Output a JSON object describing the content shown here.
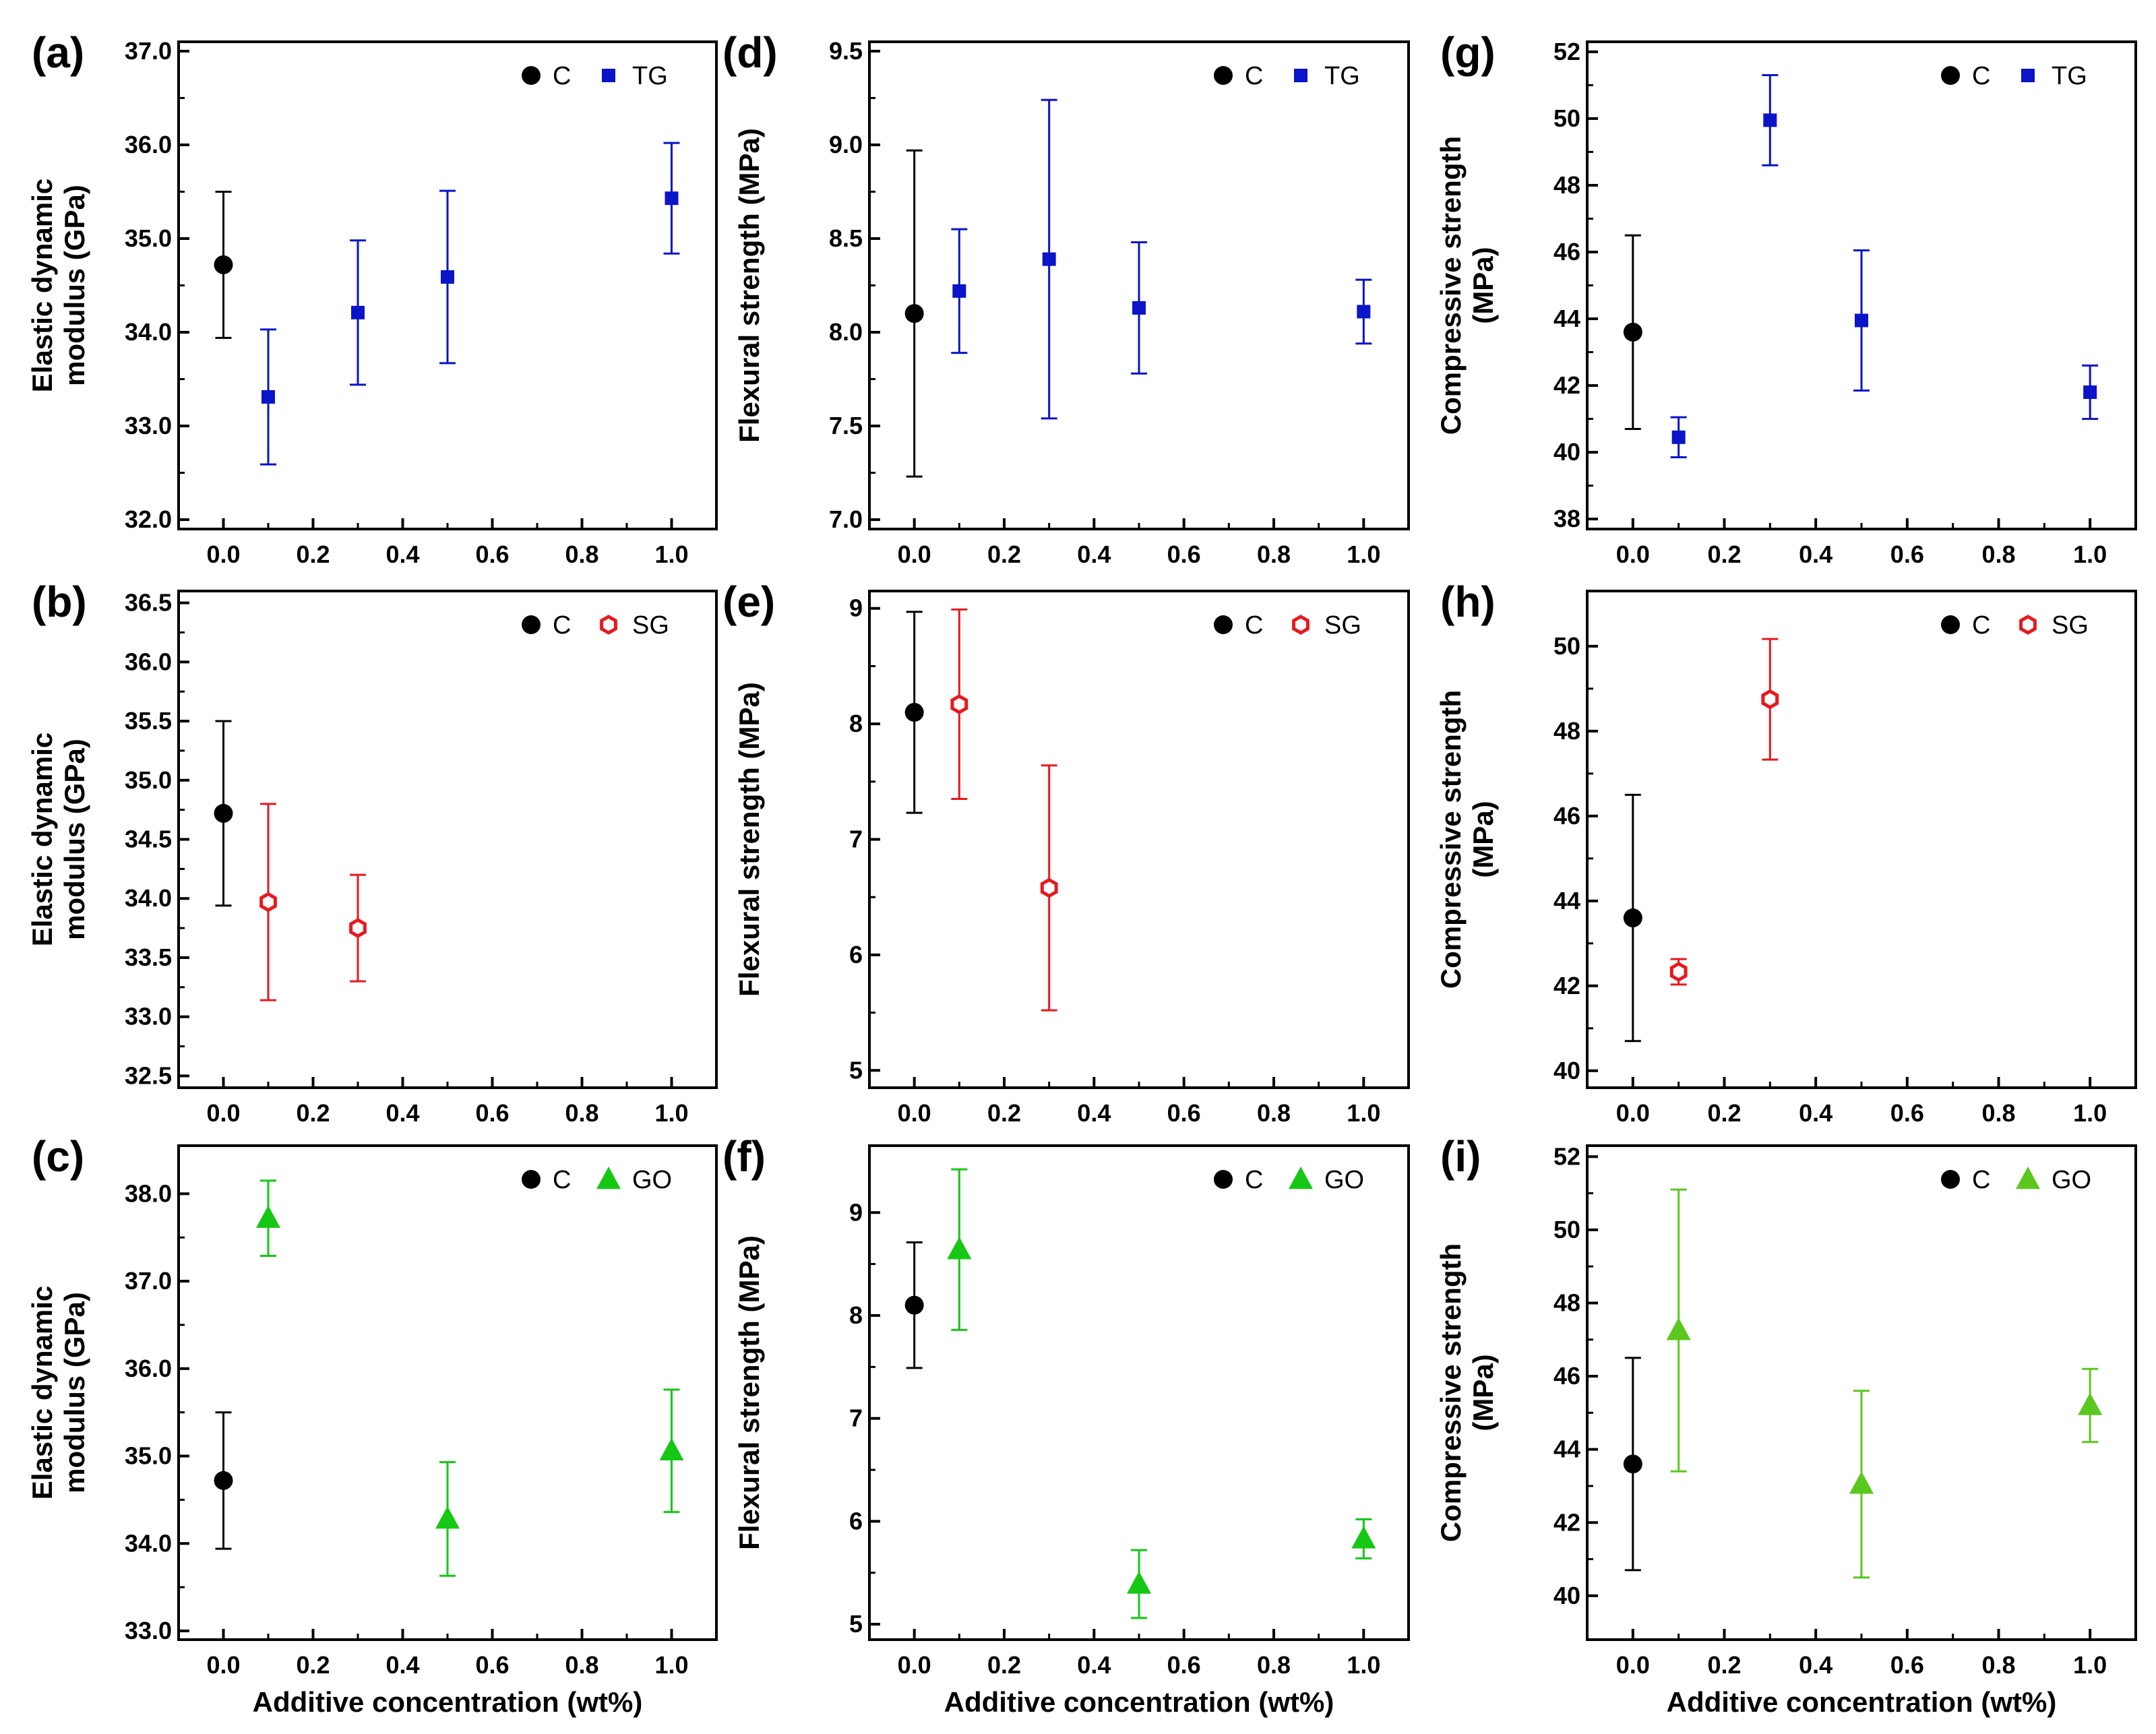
{
  "colors": {
    "C": "#000000",
    "TG": "#0a14c8",
    "SG": "#e8191e",
    "GO_bright": "#14c814",
    "GO_lime": "#5ac81e"
  },
  "chart_data": [
    {
      "panel": "(a)",
      "type": "scatter",
      "xlabel": "",
      "ylabel": [
        "Elastic dynamic",
        "modulus (GPa)"
      ],
      "xlim": [
        -0.1,
        1.1
      ],
      "ylim": [
        31.9,
        37.1
      ],
      "xticks": [
        "0.0",
        "0.2",
        "0.4",
        "0.6",
        "0.8",
        "1.0"
      ],
      "yticks": [
        "32.0",
        "33.0",
        "34.0",
        "35.0",
        "36.0",
        "37.0"
      ],
      "legend": [
        "C",
        "TG"
      ],
      "legend_position": "top-right",
      "marker": "square",
      "color_key": "TG",
      "series": [
        {
          "name": "C",
          "x": [
            0.0
          ],
          "y": [
            34.72
          ],
          "err": [
            0.78
          ]
        },
        {
          "name": "TG",
          "x": [
            0.1,
            0.3,
            0.5,
            1.0
          ],
          "y": [
            33.31,
            34.21,
            34.59,
            35.43
          ],
          "err": [
            0.72,
            0.77,
            0.92,
            0.59
          ]
        }
      ]
    },
    {
      "panel": "(b)",
      "type": "scatter",
      "xlabel": "",
      "ylabel": [
        "Elastic dynamic",
        "modulus (GPa)"
      ],
      "xlim": [
        -0.1,
        1.1
      ],
      "ylim": [
        32.4,
        36.6
      ],
      "xticks": [
        "0.0",
        "0.2",
        "0.4",
        "0.6",
        "0.8",
        "1.0"
      ],
      "yticks": [
        "32.5",
        "33.0",
        "33.5",
        "34.0",
        "34.5",
        "35.0",
        "35.5",
        "36.0",
        "36.5"
      ],
      "legend": [
        "C",
        "SG"
      ],
      "legend_position": "top-right",
      "marker": "hexagon-open",
      "color_key": "SG",
      "series": [
        {
          "name": "C",
          "x": [
            0.0
          ],
          "y": [
            34.72
          ],
          "err": [
            0.78
          ]
        },
        {
          "name": "SG",
          "x": [
            0.1,
            0.3
          ],
          "y": [
            33.97,
            33.75
          ],
          "err": [
            0.83,
            0.45
          ]
        }
      ]
    },
    {
      "panel": "(c)",
      "type": "scatter",
      "xlabel": "Additive concentration (wt%)",
      "ylabel": [
        "Elastic dynamic",
        "modulus (GPa)"
      ],
      "xlim": [
        -0.1,
        1.1
      ],
      "ylim": [
        32.9,
        38.55
      ],
      "xticks": [
        "0.0",
        "0.2",
        "0.4",
        "0.6",
        "0.8",
        "1.0"
      ],
      "yticks": [
        "33.0",
        "34.0",
        "35.0",
        "36.0",
        "37.0",
        "38.0"
      ],
      "legend": [
        "C",
        "GO"
      ],
      "legend_position": "top-right",
      "marker": "triangle",
      "color_key": "GO_bright",
      "series": [
        {
          "name": "C",
          "x": [
            0.0
          ],
          "y": [
            34.72
          ],
          "err": [
            0.78
          ]
        },
        {
          "name": "GO",
          "x": [
            0.1,
            0.5,
            1.0
          ],
          "y": [
            37.72,
            34.28,
            35.06
          ],
          "err": [
            0.43,
            0.65,
            0.7
          ]
        }
      ]
    },
    {
      "panel": "(d)",
      "type": "scatter",
      "xlabel": "",
      "ylabel": [
        "Flexural strength (MPa)"
      ],
      "xlim": [
        -0.1,
        1.1
      ],
      "ylim": [
        6.95,
        9.55
      ],
      "xticks": [
        "0.0",
        "0.2",
        "0.4",
        "0.6",
        "0.8",
        "1.0"
      ],
      "yticks": [
        "7.0",
        "7.5",
        "8.0",
        "8.5",
        "9.0",
        "9.5"
      ],
      "legend": [
        "C",
        "TG"
      ],
      "legend_position": "top-right",
      "marker": "square",
      "color_key": "TG",
      "series": [
        {
          "name": "C",
          "x": [
            0.0
          ],
          "y": [
            8.1
          ],
          "err": [
            0.87
          ]
        },
        {
          "name": "TG",
          "x": [
            0.1,
            0.3,
            0.5,
            1.0
          ],
          "y": [
            8.22,
            8.39,
            8.13,
            8.11
          ],
          "err": [
            0.33,
            0.85,
            0.35,
            0.17
          ]
        }
      ]
    },
    {
      "panel": "(e)",
      "type": "scatter",
      "xlabel": "",
      "ylabel": [
        "Flexural strength (MPa)"
      ],
      "xlim": [
        -0.1,
        1.1
      ],
      "ylim": [
        4.85,
        9.15
      ],
      "xticks": [
        "0.0",
        "0.2",
        "0.4",
        "0.6",
        "0.8",
        "1.0"
      ],
      "yticks": [
        "5",
        "6",
        "7",
        "8",
        "9"
      ],
      "legend": [
        "C",
        "SG"
      ],
      "legend_position": "top-right",
      "marker": "hexagon-open",
      "color_key": "SG",
      "series": [
        {
          "name": "C",
          "x": [
            0.0
          ],
          "y": [
            8.1
          ],
          "err": [
            0.87
          ]
        },
        {
          "name": "SG",
          "x": [
            0.1,
            0.3
          ],
          "y": [
            8.17,
            6.58
          ],
          "err": [
            0.82,
            1.06
          ]
        }
      ]
    },
    {
      "panel": "(f)",
      "type": "scatter",
      "xlabel": "Additive concentration (wt%)",
      "ylabel": [
        "Flexural strength (MPa)"
      ],
      "xlim": [
        -0.1,
        1.1
      ],
      "ylim": [
        4.85,
        9.65
      ],
      "xticks": [
        "0.0",
        "0.2",
        "0.4",
        "0.6",
        "0.8",
        "1.0"
      ],
      "yticks": [
        "5",
        "6",
        "7",
        "8",
        "9"
      ],
      "legend": [
        "C",
        "GO"
      ],
      "legend_position": "top-right",
      "marker": "triangle",
      "color_key": "GO_bright",
      "series": [
        {
          "name": "C",
          "x": [
            0.0
          ],
          "y": [
            8.1
          ],
          "err": [
            0.61
          ]
        },
        {
          "name": "GO",
          "x": [
            0.1,
            0.5,
            1.0
          ],
          "y": [
            8.64,
            5.39,
            5.83
          ],
          "err": [
            0.78,
            0.33,
            0.19
          ]
        }
      ]
    },
    {
      "panel": "(g)",
      "type": "scatter",
      "xlabel": "",
      "ylabel": [
        "Compressive strength",
        "(MPa)"
      ],
      "xlim": [
        -0.1,
        1.1
      ],
      "ylim": [
        37.7,
        52.3
      ],
      "xticks": [
        "0.0",
        "0.2",
        "0.4",
        "0.6",
        "0.8",
        "1.0"
      ],
      "yticks": [
        "38",
        "40",
        "42",
        "44",
        "46",
        "48",
        "50",
        "52"
      ],
      "legend": [
        "C",
        "TG"
      ],
      "legend_position": "top-right",
      "marker": "square",
      "color_key": "TG",
      "series": [
        {
          "name": "C",
          "x": [
            0.0
          ],
          "y": [
            43.6
          ],
          "err": [
            2.9
          ]
        },
        {
          "name": "TG",
          "x": [
            0.1,
            0.3,
            0.5,
            1.0
          ],
          "y": [
            40.45,
            49.95,
            43.95,
            41.8
          ],
          "err": [
            0.6,
            1.35,
            2.1,
            0.8
          ]
        }
      ]
    },
    {
      "panel": "(h)",
      "type": "scatter",
      "xlabel": "",
      "ylabel": [
        "Compressive strength",
        "(MPa)"
      ],
      "xlim": [
        -0.1,
        1.1
      ],
      "ylim": [
        39.6,
        51.3
      ],
      "xticks": [
        "0.0",
        "0.2",
        "0.4",
        "0.6",
        "0.8",
        "1.0"
      ],
      "yticks": [
        "40",
        "42",
        "44",
        "46",
        "48",
        "50"
      ],
      "legend": [
        "C",
        "SG"
      ],
      "legend_position": "top-right",
      "marker": "hexagon-open",
      "color_key": "SG",
      "series": [
        {
          "name": "C",
          "x": [
            0.0
          ],
          "y": [
            43.6
          ],
          "err": [
            2.9
          ]
        },
        {
          "name": "SG",
          "x": [
            0.1,
            0.3
          ],
          "y": [
            42.33,
            48.75
          ],
          "err": [
            0.3,
            1.42
          ]
        }
      ]
    },
    {
      "panel": "(i)",
      "type": "scatter",
      "xlabel": "Additive concentration (wt%)",
      "ylabel": [
        "Compressive strength",
        "(MPa)"
      ],
      "xlim": [
        -0.1,
        1.1
      ],
      "ylim": [
        38.8,
        52.3
      ],
      "xticks": [
        "0.0",
        "0.2",
        "0.4",
        "0.6",
        "0.8",
        "1.0"
      ],
      "yticks": [
        "40",
        "42",
        "44",
        "46",
        "48",
        "50",
        "52"
      ],
      "legend": [
        "C",
        "GO"
      ],
      "legend_position": "top-right",
      "marker": "triangle",
      "color_key": "GO_lime",
      "series": [
        {
          "name": "C",
          "x": [
            0.0
          ],
          "y": [
            43.6
          ],
          "err": [
            2.9
          ]
        },
        {
          "name": "GO",
          "x": [
            0.1,
            0.5,
            1.0
          ],
          "y": [
            47.25,
            43.05,
            45.2
          ],
          "err": [
            3.85,
            2.55,
            1.0
          ]
        }
      ]
    }
  ]
}
